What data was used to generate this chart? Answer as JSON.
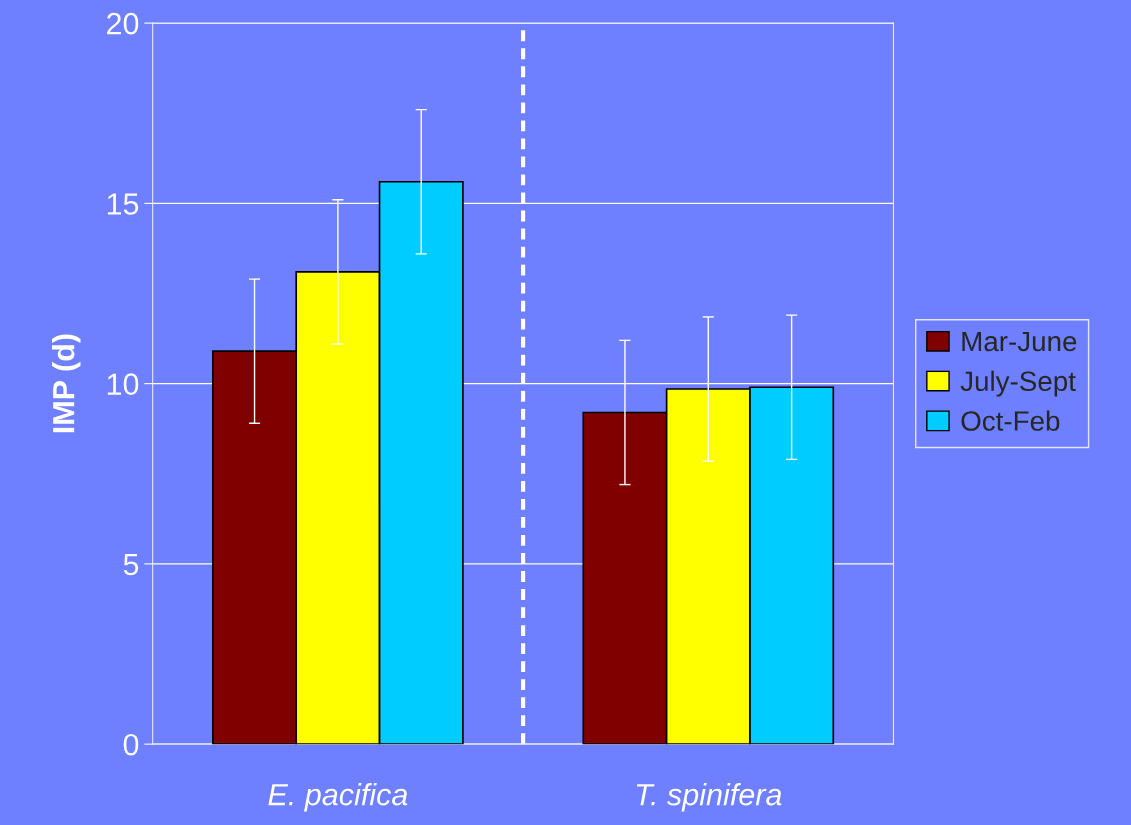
{
  "chart_data": {
    "type": "bar",
    "ylabel": "IMP (d)",
    "categories": [
      "E. pacifica",
      "T. spinifera"
    ],
    "series": [
      {
        "name": "Mar-June",
        "color": "#800000",
        "values": [
          10.9,
          9.2
        ],
        "errors": [
          2.0,
          2.0
        ]
      },
      {
        "name": "July-Sept",
        "color": "#ffff00",
        "values": [
          13.1,
          9.85
        ],
        "errors": [
          2.0,
          2.0
        ]
      },
      {
        "name": "Oct-Feb",
        "color": "#00ccff",
        "values": [
          15.6,
          9.9
        ],
        "errors": [
          2.0,
          2.0
        ]
      }
    ],
    "ylim": [
      0,
      20
    ],
    "yticks": [
      0,
      5,
      10,
      15,
      20
    ],
    "grid": "y",
    "legend": "right"
  }
}
